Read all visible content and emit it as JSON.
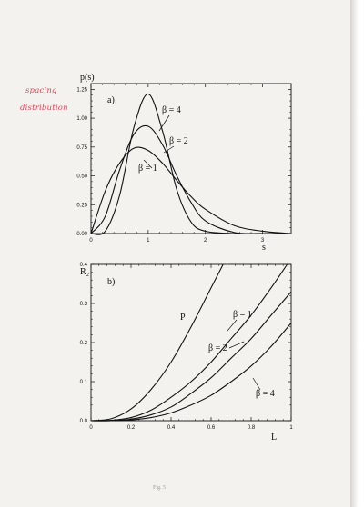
{
  "annotation": {
    "line1": "spacing",
    "line2": "distribution"
  },
  "caption": "Fig. 5",
  "chart_data": [
    {
      "type": "line",
      "panel_label": "a)",
      "ylabel": "p(s)",
      "xlabel": "s",
      "xlim": [
        0,
        3.5
      ],
      "ylim": [
        0,
        1.3
      ],
      "xticks": [
        "0",
        "1",
        "2",
        "3"
      ],
      "yticks": [
        "0.00",
        "0.25",
        "0.50",
        "0.75",
        "1.00",
        "1.25"
      ],
      "series": [
        {
          "name": "β = 1",
          "x": [
            0,
            0.25,
            0.5,
            0.75,
            1.0,
            1.25,
            1.5,
            1.75,
            2.0,
            2.5,
            3.0,
            3.5
          ],
          "y": [
            0,
            0.37,
            0.61,
            0.74,
            0.72,
            0.61,
            0.46,
            0.32,
            0.21,
            0.07,
            0.02,
            0.0
          ]
        },
        {
          "name": "β = 2",
          "x": [
            0,
            0.25,
            0.5,
            0.75,
            1.0,
            1.25,
            1.5,
            1.75,
            2.0,
            2.5,
            3.0,
            3.5
          ],
          "y": [
            0,
            0.15,
            0.55,
            0.86,
            0.93,
            0.77,
            0.5,
            0.27,
            0.11,
            0.01,
            0.0,
            0.0
          ]
        },
        {
          "name": "β = 4",
          "x": [
            0,
            0.25,
            0.5,
            0.75,
            1.0,
            1.25,
            1.5,
            1.75,
            2.0,
            2.5,
            3.0,
            3.5
          ],
          "y": [
            0,
            0.02,
            0.33,
            0.92,
            1.21,
            0.89,
            0.38,
            0.1,
            0.02,
            0.0,
            0.0,
            0.0
          ]
        }
      ]
    },
    {
      "type": "line",
      "panel_label": "b)",
      "ylabel": "R₂",
      "xlabel": "L",
      "xlim": [
        0,
        1
      ],
      "ylim": [
        0,
        0.4
      ],
      "xticks": [
        "0",
        "0.2",
        "0.4",
        "0.6",
        "0.8",
        "1"
      ],
      "yticks": [
        "0.0",
        "0.1",
        "0.2",
        "0.3",
        "0.4"
      ],
      "series": [
        {
          "name": "P",
          "x": [
            0,
            0.1,
            0.2,
            0.3,
            0.4,
            0.5,
            0.6,
            0.66
          ],
          "y": [
            0,
            0.005,
            0.03,
            0.08,
            0.15,
            0.24,
            0.34,
            0.4
          ]
        },
        {
          "name": "β = 1",
          "x": [
            0,
            0.1,
            0.2,
            0.3,
            0.4,
            0.5,
            0.6,
            0.7,
            0.8,
            0.9,
            0.98
          ],
          "y": [
            0,
            0.001,
            0.008,
            0.027,
            0.06,
            0.1,
            0.15,
            0.21,
            0.27,
            0.34,
            0.4
          ]
        },
        {
          "name": "β = 2",
          "x": [
            0,
            0.1,
            0.2,
            0.3,
            0.4,
            0.5,
            0.6,
            0.7,
            0.8,
            0.9,
            1.0
          ],
          "y": [
            0,
            0.0,
            0.004,
            0.015,
            0.035,
            0.07,
            0.11,
            0.16,
            0.21,
            0.27,
            0.33
          ]
        },
        {
          "name": "β = 4",
          "x": [
            0,
            0.1,
            0.2,
            0.3,
            0.4,
            0.5,
            0.6,
            0.7,
            0.8,
            0.9,
            1.0
          ],
          "y": [
            0,
            0.0,
            0.002,
            0.008,
            0.02,
            0.04,
            0.065,
            0.1,
            0.14,
            0.19,
            0.25
          ]
        }
      ]
    }
  ]
}
